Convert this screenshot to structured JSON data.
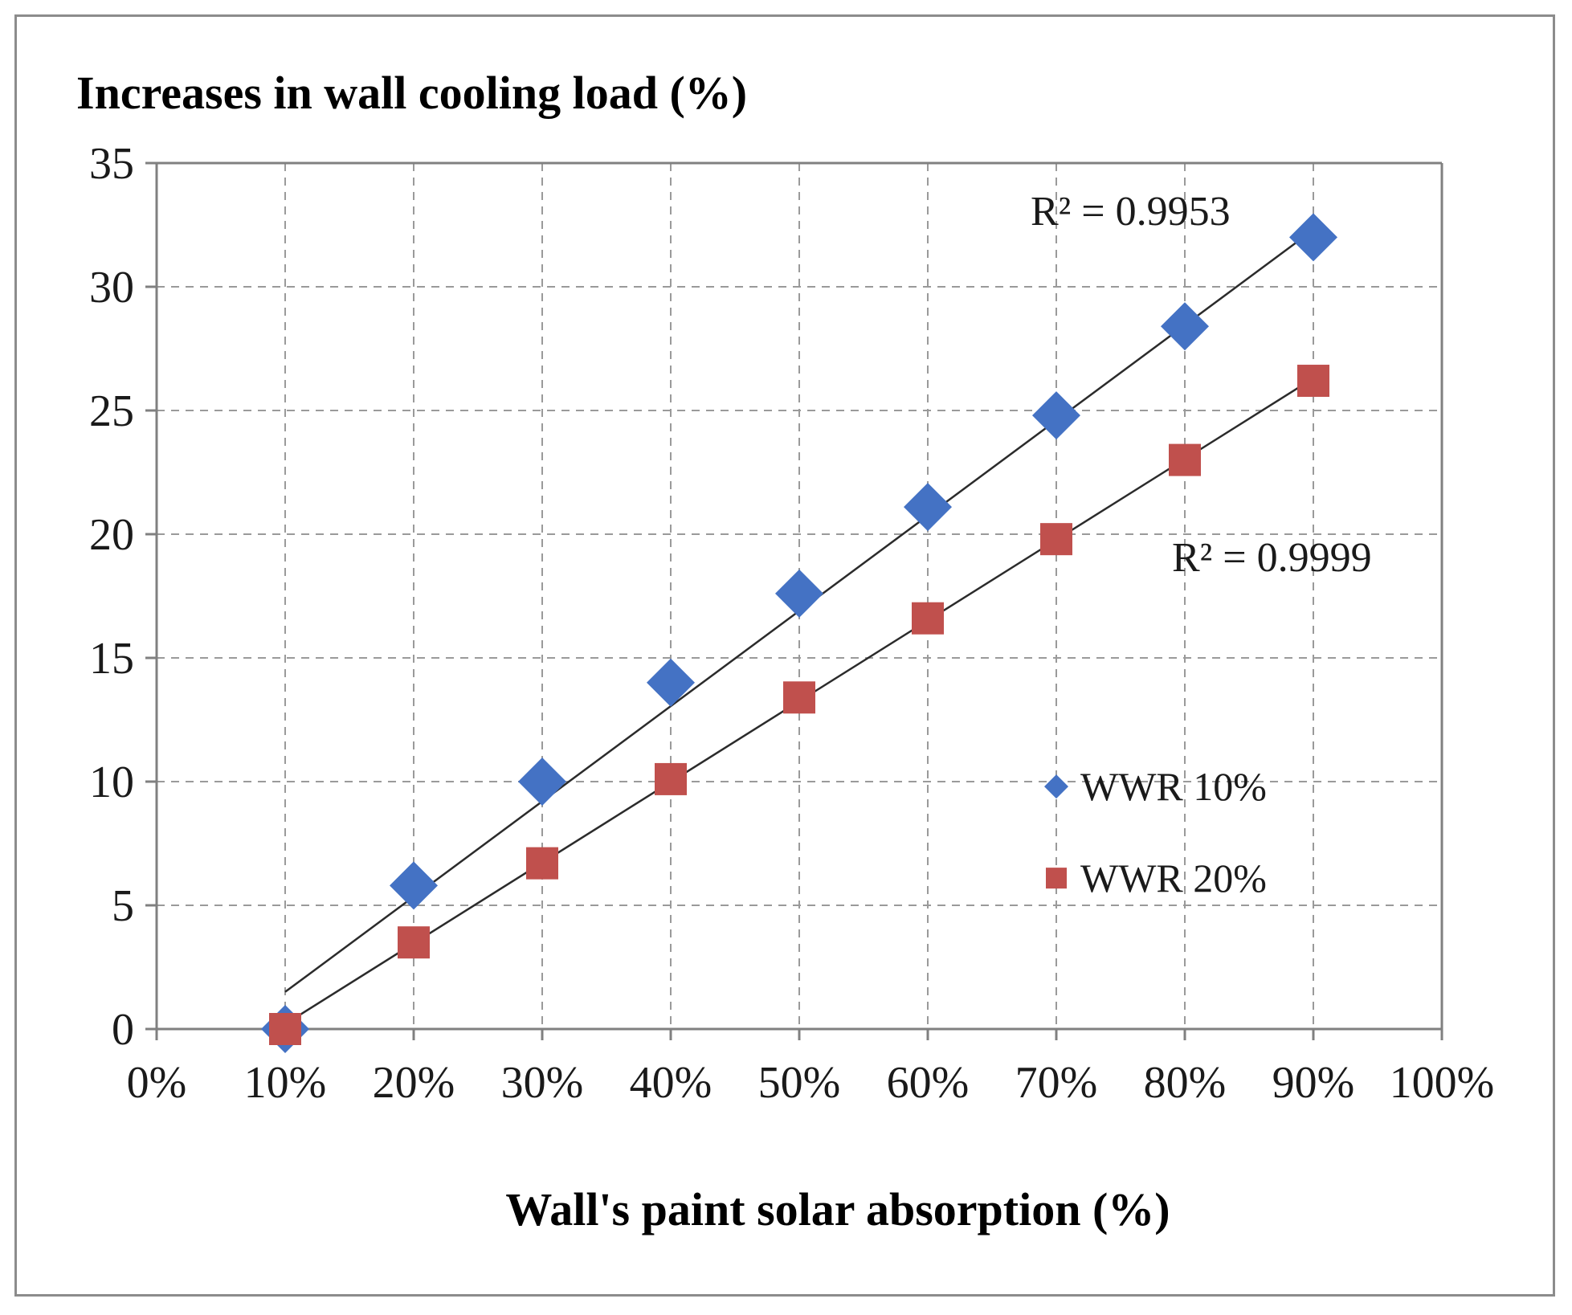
{
  "chart_data": {
    "type": "scatter",
    "y_title": "Increases in wall cooling load (%)",
    "xlabel": "Wall's paint solar absorption (%)",
    "x_ticks": [
      "0%",
      "10%",
      "20%",
      "30%",
      "40%",
      "50%",
      "60%",
      "70%",
      "80%",
      "90%",
      "100%"
    ],
    "y_ticks": [
      "0",
      "5",
      "10",
      "15",
      "20",
      "25",
      "30",
      "35"
    ],
    "xlim": [
      0,
      100
    ],
    "ylim": [
      0,
      35
    ],
    "grid": true,
    "legend_position": "right-middle",
    "series": [
      {
        "name": "WWR 10%",
        "marker": "diamond",
        "color": "#4472c4",
        "x": [
          10,
          20,
          30,
          40,
          50,
          60,
          70,
          80,
          90
        ],
        "y": [
          0,
          5.8,
          10.0,
          14.0,
          17.6,
          21.1,
          24.8,
          28.4,
          32.0
        ],
        "trendline": {
          "x": [
            10,
            90
          ],
          "y": [
            1.5,
            32.3
          ]
        },
        "r2_label": "R² = 0.9953"
      },
      {
        "name": "WWR 20%",
        "marker": "square",
        "color": "#c0504d",
        "x": [
          10,
          20,
          30,
          40,
          50,
          60,
          70,
          80,
          90
        ],
        "y": [
          0,
          3.5,
          6.7,
          10.1,
          13.4,
          16.6,
          19.8,
          23.0,
          26.2
        ],
        "trendline": {
          "x": [
            10,
            90
          ],
          "y": [
            0.2,
            26.3
          ]
        },
        "r2_label": "R² = 0.9999"
      }
    ]
  }
}
